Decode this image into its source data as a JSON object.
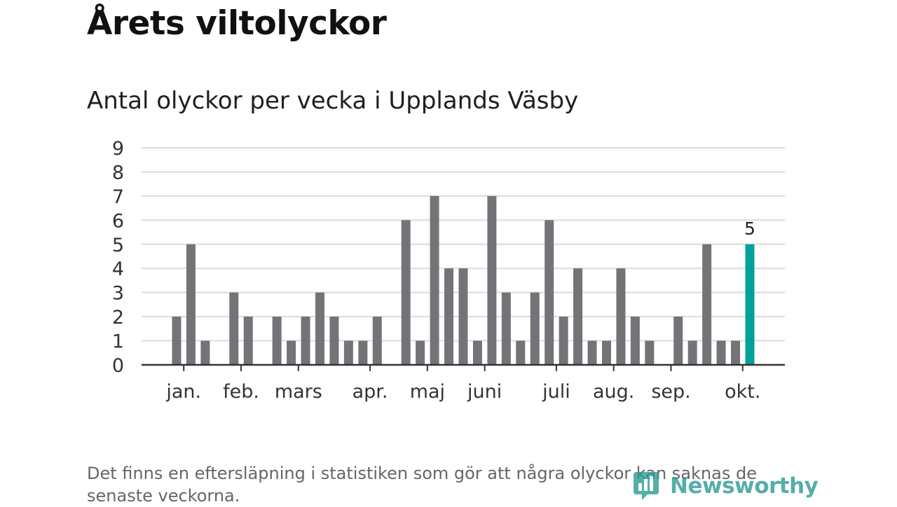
{
  "title": "Årets viltolyckor",
  "subtitle": "Antal olyckor per vecka i Upplands Väsby",
  "footnote": "Det finns en eftersläpning i statistiken som gör att några olyckor kan saknas de senaste veckorna.",
  "logo": {
    "text": "Newsworthy",
    "icon": "newsworthy-bar-chart-icon",
    "color": "#2c9a93"
  },
  "chart_data": {
    "type": "bar",
    "values": [
      2,
      5,
      1,
      0,
      3,
      2,
      0,
      2,
      1,
      2,
      3,
      2,
      1,
      1,
      2,
      0,
      6,
      1,
      7,
      4,
      4,
      1,
      7,
      3,
      1,
      3,
      6,
      2,
      4,
      1,
      1,
      4,
      2,
      1,
      0,
      2,
      1,
      5,
      1,
      1,
      5
    ],
    "highlight_index": 40,
    "highlight_label": "5",
    "y_ticks": [
      "0",
      "1",
      "2",
      "3",
      "4",
      "5",
      "6",
      "7",
      "8",
      "9"
    ],
    "ylim": [
      0,
      9
    ],
    "x_month_labels": [
      {
        "label": "jan.",
        "week_index": 0.5
      },
      {
        "label": "feb.",
        "week_index": 4.5
      },
      {
        "label": "mars",
        "week_index": 8.5
      },
      {
        "label": "apr.",
        "week_index": 13.5
      },
      {
        "label": "maj",
        "week_index": 17.5
      },
      {
        "label": "juni",
        "week_index": 21.5
      },
      {
        "label": "juli",
        "week_index": 26.5
      },
      {
        "label": "aug.",
        "week_index": 30.5
      },
      {
        "label": "sep.",
        "week_index": 34.5
      },
      {
        "label": "okt.",
        "week_index": 39.5
      }
    ],
    "grid": true,
    "colors": {
      "bar": "#747378",
      "highlight": "#00a19a",
      "grid": "#dcdcdc",
      "axis": "#333333"
    }
  }
}
